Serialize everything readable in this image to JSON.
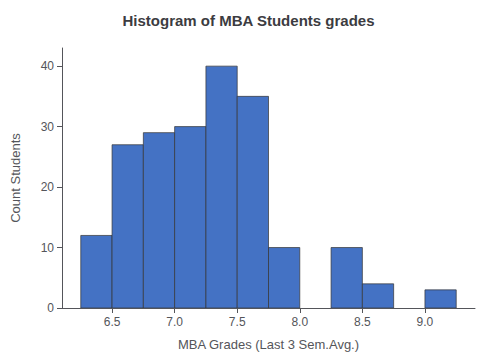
{
  "chart_data": {
    "type": "histogram",
    "title": "Histogram of MBA Students grades",
    "xlabel": "MBA Grades (Last 3 Sem.Avg.)",
    "ylabel": "Count Students",
    "bins": [
      6.25,
      6.5,
      6.75,
      7.0,
      7.25,
      7.5,
      7.75,
      8.0,
      8.25,
      8.5,
      8.75,
      9.0,
      9.25
    ],
    "values": [
      12,
      27,
      29,
      30,
      40,
      35,
      10,
      0,
      10,
      4,
      0,
      3
    ],
    "color": "#4472C4",
    "xlim": [
      6.1,
      9.4
    ],
    "xticks": [
      6.5,
      {
        "value": 7,
        "label": "7.0"
      },
      7.5,
      {
        "value": 8,
        "label": "8.0"
      },
      8.5,
      {
        "value": 9,
        "label": "9.0"
      }
    ],
    "ylim": [
      0,
      43
    ],
    "yticks": [
      0,
      10,
      20,
      30,
      40
    ],
    "grid": false
  }
}
